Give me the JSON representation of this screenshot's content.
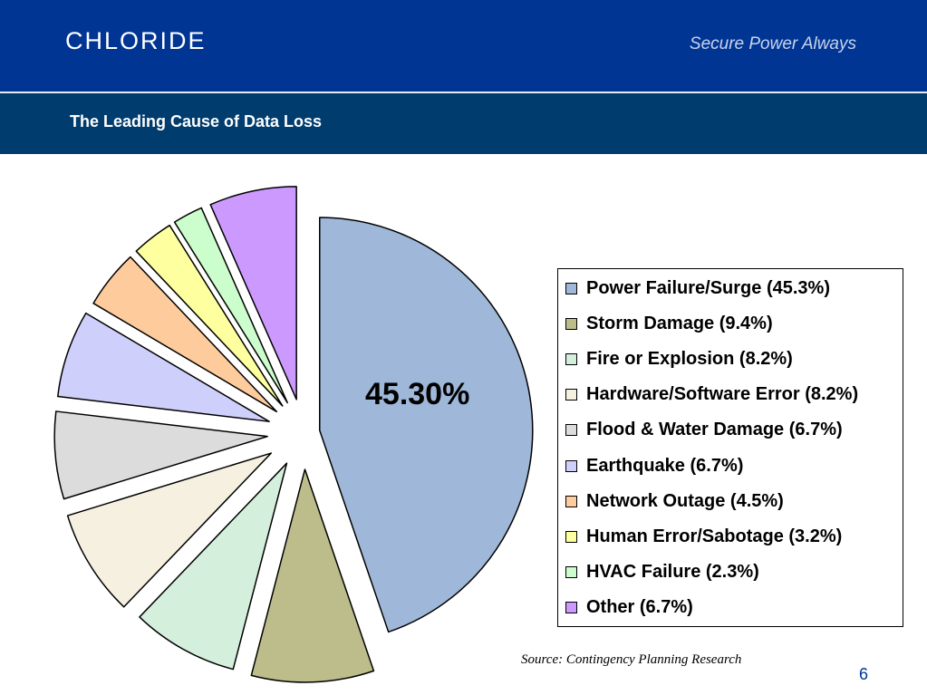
{
  "header": {
    "logo_text": "CHLORIDE",
    "tagline": "Secure Power Always",
    "title": "The Leading Cause of Data Loss"
  },
  "footer": {
    "source": "Source: Contingency Planning Research",
    "page_number": "6"
  },
  "colors": {
    "header_blue": "#003594",
    "title_band": "#003c6e"
  },
  "chart_data": {
    "type": "pie",
    "title": "",
    "exploded": true,
    "data_labels": [
      {
        "slice": 0,
        "text": "45.30%"
      }
    ],
    "slices": [
      {
        "label": "Power Failure/Surge (45.3%)",
        "value": 45.3,
        "color": "#9fb7d8"
      },
      {
        "label": "Storm Damage (9.4%)",
        "value": 9.4,
        "color": "#bcbd8a"
      },
      {
        "label": "Fire or Explosion (8.2%)",
        "value": 8.2,
        "color": "#d4efdc"
      },
      {
        "label": "Hardware/Software Error (8.2%)",
        "value": 8.2,
        "color": "#f6f0e0"
      },
      {
        "label": "Flood & Water Damage (6.7%)",
        "value": 6.7,
        "color": "#dcdcdc"
      },
      {
        "label": "Earthquake (6.7%)",
        "value": 6.7,
        "color": "#cfcffc"
      },
      {
        "label": "Network Outage (4.5%)",
        "value": 4.5,
        "color": "#fecb9c"
      },
      {
        "label": "Human Error/Sabotage (3.2%)",
        "value": 3.2,
        "color": "#feff9f"
      },
      {
        "label": "HVAC Failure (2.3%)",
        "value": 2.3,
        "color": "#ccfdcc"
      },
      {
        "label": "Other (6.7%)",
        "value": 6.7,
        "color": "#cc99fe"
      }
    ],
    "legend": {
      "position": "right"
    }
  }
}
